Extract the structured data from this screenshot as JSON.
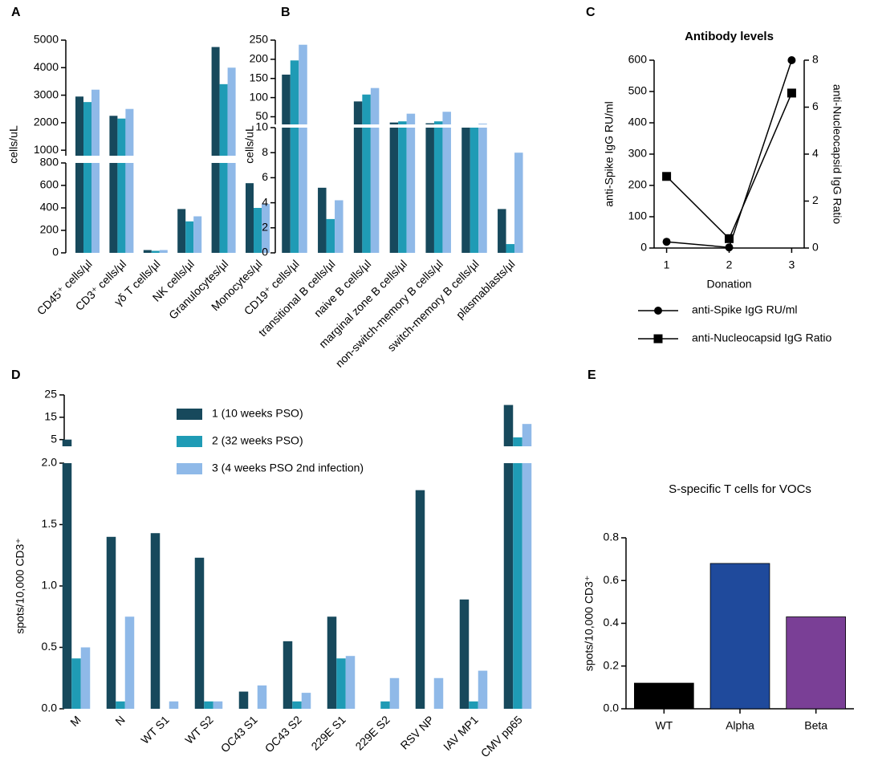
{
  "chart_data": [
    {
      "type": "broken_bar",
      "panel_label": "A",
      "ylabel": "cells/uL",
      "categories": [
        "CD45⁺ cells/µl",
        "CD3⁺ cells/µl",
        "γδ T cells/µl",
        "NK cells/µl",
        "Granulocytes/µl",
        "Monocytes/µl"
      ],
      "series": [
        {
          "color": "#17495c",
          "values": [
            2950,
            2250,
            25,
            390,
            4750,
            620
          ]
        },
        {
          "color": "#1f9bb5",
          "values": [
            2750,
            2150,
            18,
            280,
            3400,
            400
          ]
        },
        {
          "color": "#8fb9e8",
          "values": [
            3200,
            2500,
            25,
            325,
            4000,
            435
          ]
        }
      ],
      "y_segments": [
        {
          "ylim": [
            0,
            800
          ],
          "yticks": [
            0,
            200,
            400,
            600,
            800
          ]
        },
        {
          "ylim": [
            800,
            5000
          ],
          "yticks": [
            1000,
            2000,
            3000,
            4000,
            5000
          ]
        }
      ]
    },
    {
      "type": "broken_bar",
      "panel_label": "B",
      "ylabel": "cells/uL",
      "categories": [
        "CD19⁺ cells/µl",
        "transitional B cells/µl",
        "naive B cells/µl",
        "marginal zone B cells/µl",
        "non-switch-memory B cells/µl",
        "switch-memory B cells/µl",
        "plasmablasts/µl"
      ],
      "series": [
        {
          "color": "#17495c",
          "values": [
            160,
            5.2,
            90,
            35,
            33,
            20,
            3.5
          ]
        },
        {
          "color": "#1f9bb5",
          "values": [
            197,
            2.7,
            108,
            38,
            38,
            28,
            0.7
          ]
        },
        {
          "color": "#8fb9e8",
          "values": [
            238,
            4.2,
            125,
            58,
            63,
            32,
            8
          ]
        }
      ],
      "y_segments": [
        {
          "ylim": [
            0,
            10
          ],
          "yticks": [
            0,
            2,
            4,
            6,
            8,
            10
          ]
        },
        {
          "ylim": [
            30,
            250
          ],
          "yticks": [
            50,
            100,
            150,
            200,
            250
          ]
        }
      ]
    },
    {
      "type": "line",
      "panel_label": "C",
      "title": "Antibody levels",
      "xlabel": "Donation",
      "ylabel": "anti-Spike IgG RU/ml",
      "y2label": "anti-Nucleocapsid IgG Ratio",
      "x": [
        1,
        2,
        3
      ],
      "xlim": [
        0.8,
        3.2
      ],
      "xticks": [
        1,
        2,
        3
      ],
      "ylim": [
        0,
        600
      ],
      "yticks": [
        0,
        100,
        200,
        300,
        400,
        500,
        600
      ],
      "y2lim": [
        0,
        8
      ],
      "y2ticks": [
        0,
        2,
        4,
        6,
        8
      ],
      "series": [
        {
          "name": "anti-Spike IgG RU/ml",
          "color": "#000000",
          "marker": "circle",
          "values": [
            20,
            2,
            600
          ]
        },
        {
          "name": "anti-Nucleocapsid IgG Ratio",
          "color": "#000000",
          "marker": "square",
          "axis": "y2",
          "values": [
            3.05,
            0.4,
            6.6
          ]
        }
      ]
    },
    {
      "type": "broken_bar",
      "panel_label": "D",
      "ylabel": "spots/10,000 CD3⁺",
      "categories": [
        "M",
        "N",
        "WT S1",
        "WT S2",
        "OC43 S1",
        "OC43 S2",
        "229E S1",
        "229E S2",
        "RSV NP",
        "IAV MP1",
        "CMV pp65"
      ],
      "series": [
        {
          "name": "1 (10 weeks PSO)",
          "color": "#17495c",
          "values": [
            5,
            1.4,
            1.43,
            1.23,
            0.14,
            0.55,
            0.75,
            0,
            1.78,
            0.89,
            20.5
          ]
        },
        {
          "name": "2 (32 weeks PSO)",
          "color": "#1f9bb5",
          "values": [
            0.41,
            0.06,
            0,
            0.06,
            0,
            0.06,
            0.41,
            0.06,
            0,
            0.06,
            6
          ]
        },
        {
          "name": "3 (4 weeks PSO 2nd infection)",
          "color": "#8fb9e8",
          "values": [
            0.5,
            0.75,
            0.06,
            0.06,
            0.19,
            0.13,
            0.43,
            0.25,
            0.25,
            0.31,
            12
          ]
        }
      ],
      "y_segments": [
        {
          "ylim": [
            0,
            2
          ],
          "yticks": [
            {
              "value": 0,
              "label": "0.0"
            },
            0.5,
            {
              "value": 1,
              "label": "1.0"
            },
            1.5,
            {
              "value": 2,
              "label": "2.0"
            }
          ]
        },
        {
          "ylim": [
            2,
            25
          ],
          "yticks": [
            5,
            15,
            25
          ]
        }
      ]
    },
    {
      "type": "bar",
      "panel_label": "E",
      "title": "S-specific T cells for VOCs",
      "ylabel": "spots/10,000 CD3⁺",
      "categories": [
        "WT",
        "Alpha",
        "Beta"
      ],
      "values": [
        0.12,
        0.68,
        0.43
      ],
      "colors": [
        "#000000",
        "#1f4a9c",
        "#7a3f96"
      ],
      "ylim": [
        0,
        0.8
      ],
      "yticks": [
        {
          "value": 0,
          "label": "0.0"
        },
        0.2,
        0.4,
        0.6,
        0.8
      ]
    }
  ]
}
